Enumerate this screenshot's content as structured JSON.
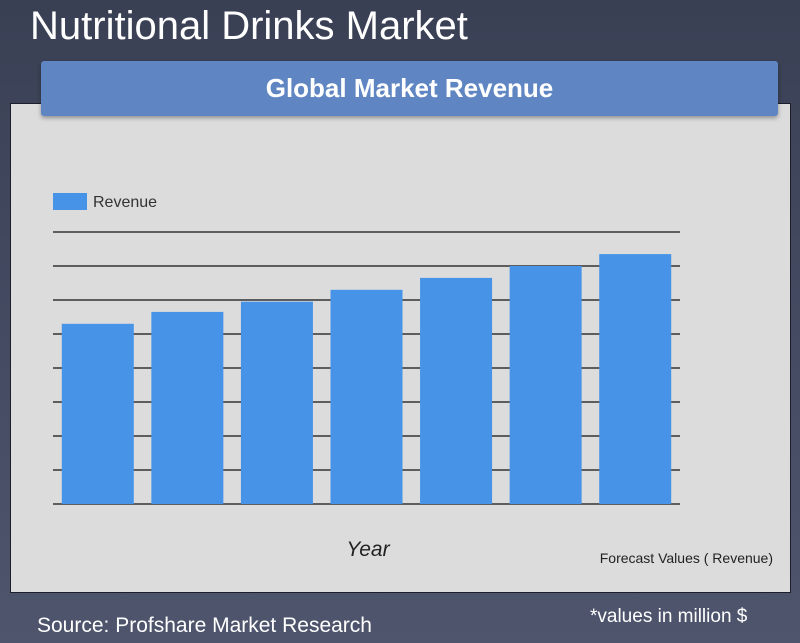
{
  "page": {
    "title": "Nutritional Drinks Market",
    "source": "Source: Profshare Market Research",
    "units_note": "*values in million $"
  },
  "chart_data": {
    "type": "bar",
    "title": "Global Market Revenue",
    "xlabel": "Year",
    "ylabel": "",
    "categories": [
      "",
      "",
      "",
      "",
      "",
      "",
      ""
    ],
    "series": [
      {
        "name": "Revenue",
        "values": [
          5.3,
          5.65,
          5.95,
          6.3,
          6.65,
          7.0,
          7.35
        ]
      }
    ],
    "ylim": [
      0,
      8
    ],
    "grid": true,
    "legend": "top-left",
    "note": "Forecast Values ( Revenue)",
    "colors": {
      "bar": "#4693e8",
      "grid": "#111111"
    }
  }
}
